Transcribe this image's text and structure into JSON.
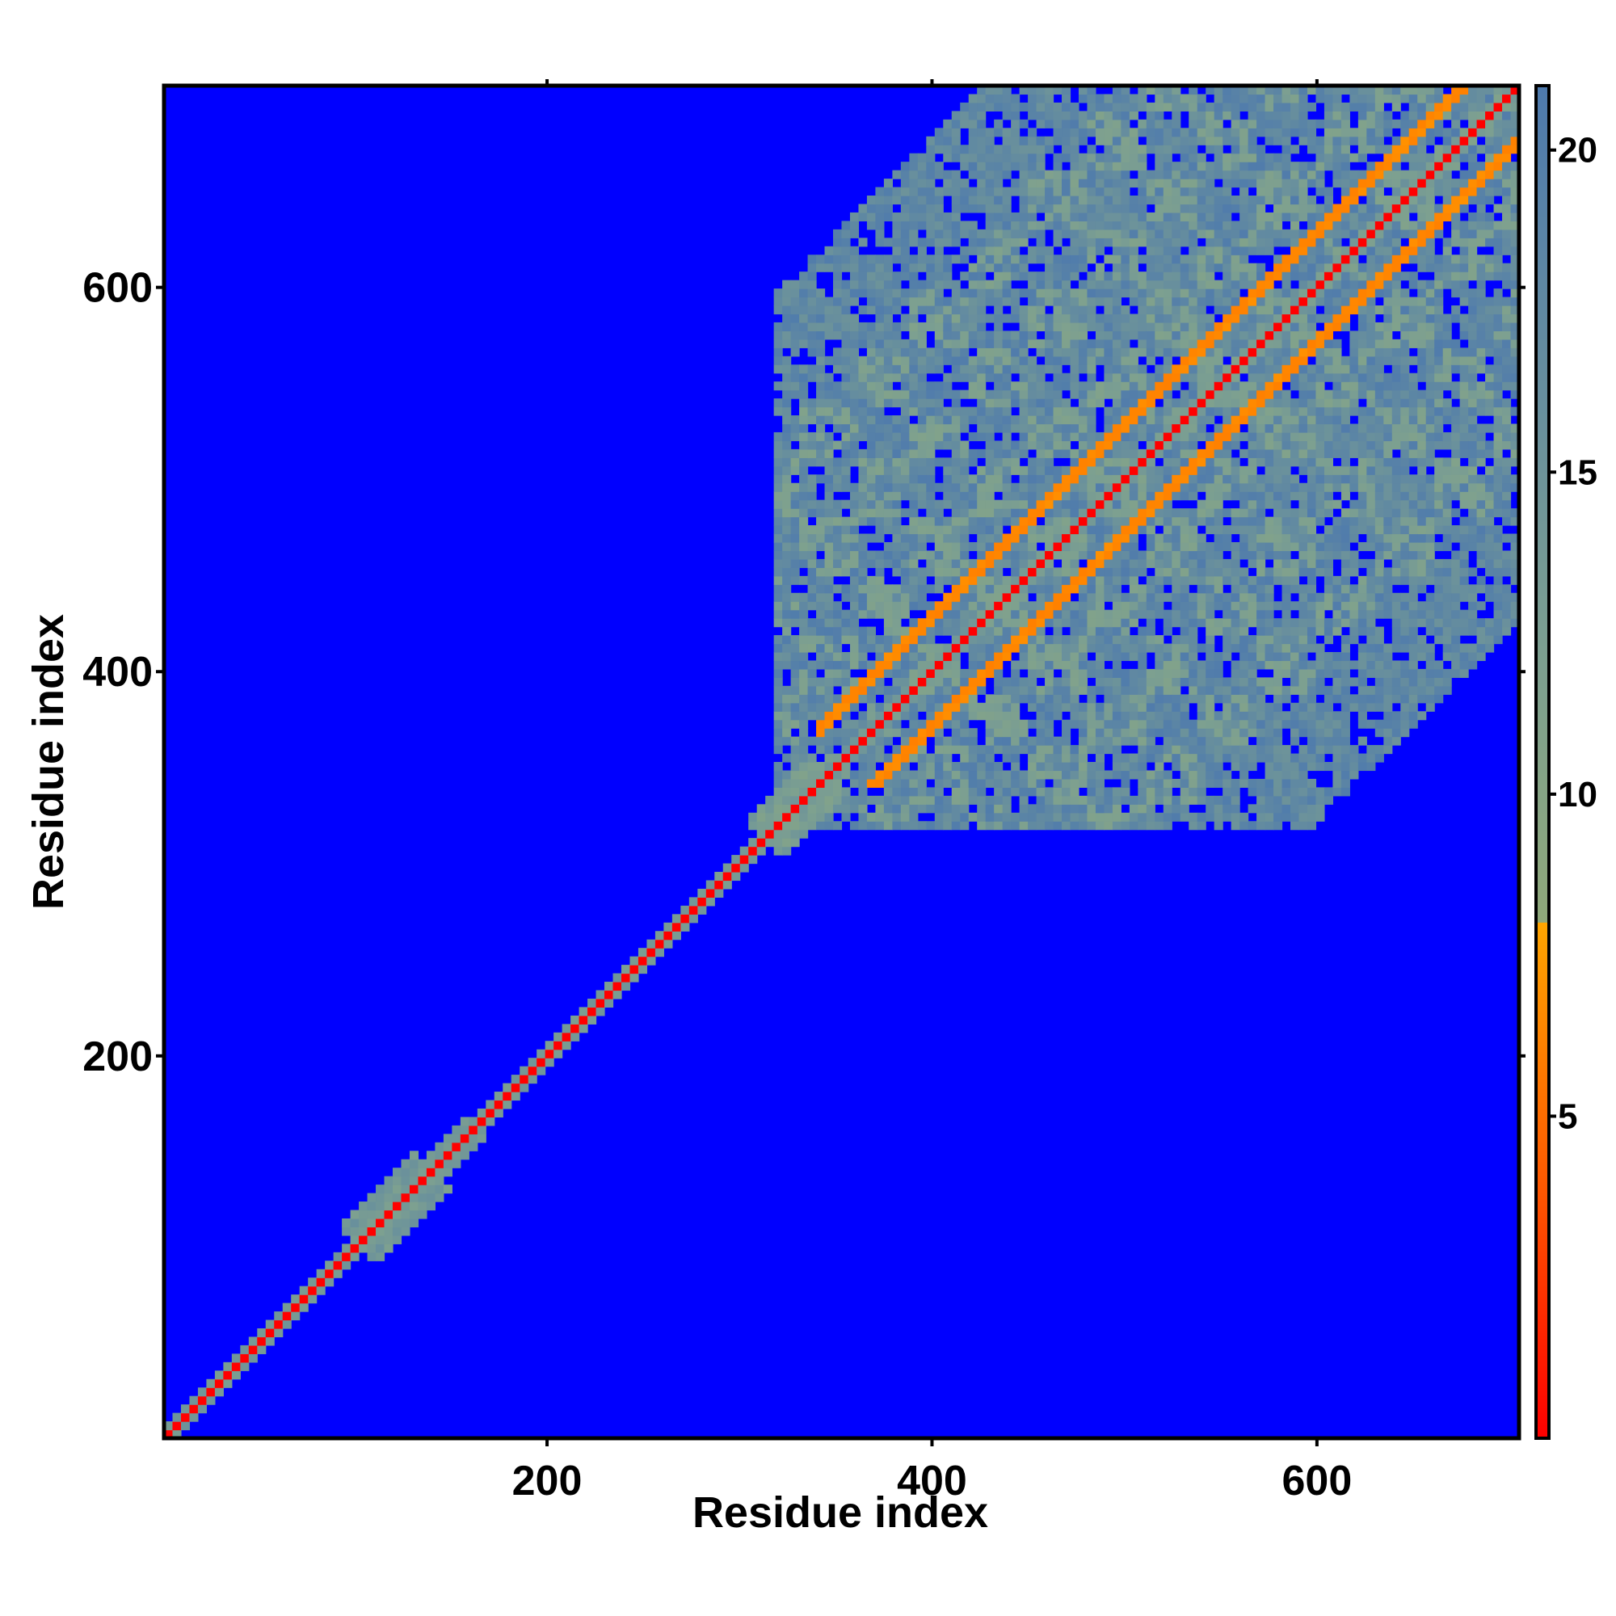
{
  "chart_data": {
    "type": "heatmap",
    "title": "",
    "xlabel": "Residue index",
    "ylabel": "Residue index",
    "xlim": [
      1,
      705
    ],
    "ylim": [
      1,
      705
    ],
    "x_ticks": [
      200,
      400,
      600
    ],
    "y_ticks": [
      200,
      400,
      600
    ],
    "x_tick_labels": [
      "200",
      "400",
      "600"
    ],
    "y_tick_labels": [
      "200",
      "400",
      "600"
    ],
    "value_range": [
      0,
      21
    ],
    "colorbar": {
      "ticks": [
        5,
        10,
        15,
        20
      ],
      "tick_labels": [
        "5",
        "10",
        "15",
        "20"
      ],
      "placement": "right",
      "color_stops": [
        {
          "value": 0,
          "color": "#ff0000"
        },
        {
          "value": 4,
          "color": "#ff5a00"
        },
        {
          "value": 8,
          "color": "#ffa500"
        },
        {
          "value": 8.01,
          "color": "#8fa87a"
        },
        {
          "value": 12,
          "color": "#7da090"
        },
        {
          "value": 21,
          "color": "#4e7aad"
        }
      ],
      "max_color": "#0000ff"
    },
    "background_value": 21,
    "background_color": "#0000ff",
    "main_diagonal": {
      "from": 1,
      "to": 705,
      "value": 0
    },
    "structured_domain": {
      "from": 320,
      "to": 705
    },
    "parallel_contact_bands": [
      {
        "offset": 28,
        "from": 355,
        "to": 705,
        "value": 6
      },
      {
        "offset": -28,
        "from": 355,
        "to": 705,
        "value": 6
      }
    ],
    "local_contact_blobs": [
      {
        "center": 120,
        "width": 20,
        "value": 12
      },
      {
        "center": 150,
        "width": 12,
        "value": 12
      },
      {
        "center": 330,
        "width": 18,
        "value": 11
      }
    ],
    "grid": false,
    "legend": "none"
  }
}
